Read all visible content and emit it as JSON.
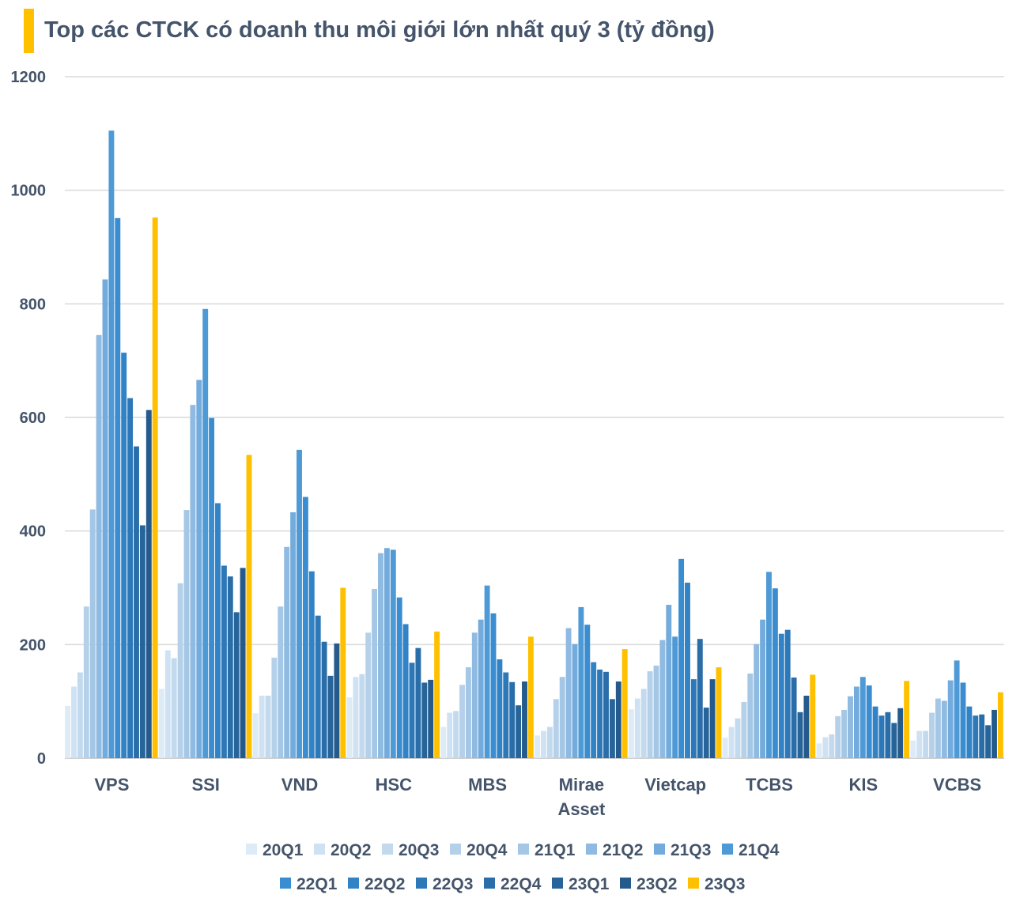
{
  "chart_data": {
    "type": "bar",
    "title": "Top các CTCK có doanh thu môi giới lớn nhất quý 3 (tỷ đồng)",
    "xlabel": "",
    "ylabel": "",
    "ylim": [
      0,
      1200
    ],
    "yticks": [
      0,
      200,
      400,
      600,
      800,
      1000,
      1200
    ],
    "grid": true,
    "legend_position": "bottom",
    "categories": [
      "VPS",
      "SSI",
      "VND",
      "HSC",
      "MBS",
      "Mirae Asset",
      "Vietcap",
      "TCBS",
      "KIS",
      "VCBS"
    ],
    "series": [
      {
        "name": "20Q1",
        "color": "#DDEBF7",
        "values": [
          92,
          122,
          79,
          107,
          55,
          40,
          86,
          36,
          26,
          31
        ]
      },
      {
        "name": "20Q2",
        "color": "#CFE2F3",
        "values": [
          126,
          190,
          110,
          143,
          80,
          48,
          105,
          55,
          37,
          48
        ]
      },
      {
        "name": "20Q3",
        "color": "#C3DAEE",
        "values": [
          151,
          176,
          110,
          148,
          83,
          55,
          122,
          70,
          42,
          48
        ]
      },
      {
        "name": "20Q4",
        "color": "#B5D1EA",
        "values": [
          267,
          308,
          177,
          221,
          129,
          104,
          153,
          99,
          74,
          80
        ]
      },
      {
        "name": "21Q1",
        "color": "#A4C7E6",
        "values": [
          438,
          437,
          267,
          298,
          160,
          143,
          163,
          149,
          85,
          105
        ]
      },
      {
        "name": "21Q2",
        "color": "#8FBAE1",
        "values": [
          745,
          622,
          372,
          361,
          221,
          229,
          208,
          201,
          109,
          101
        ]
      },
      {
        "name": "21Q3",
        "color": "#74ABDD",
        "values": [
          843,
          666,
          433,
          370,
          244,
          201,
          270,
          244,
          126,
          137
        ]
      },
      {
        "name": "21Q4",
        "color": "#4D9AD6",
        "values": [
          1105,
          791,
          543,
          367,
          304,
          266,
          214,
          328,
          143,
          172
        ]
      },
      {
        "name": "22Q1",
        "color": "#3A8DD0",
        "values": [
          951,
          599,
          460,
          283,
          255,
          235,
          351,
          299,
          128,
          133
        ]
      },
      {
        "name": "22Q2",
        "color": "#3282C6",
        "values": [
          714,
          449,
          329,
          236,
          174,
          169,
          309,
          219,
          91,
          91
        ]
      },
      {
        "name": "22Q3",
        "color": "#2D78B8",
        "values": [
          634,
          339,
          251,
          168,
          151,
          156,
          139,
          226,
          75,
          75
        ]
      },
      {
        "name": "22Q4",
        "color": "#2A6EA9",
        "values": [
          549,
          320,
          205,
          194,
          134,
          152,
          210,
          142,
          81,
          77
        ]
      },
      {
        "name": "23Q1",
        "color": "#27649A",
        "values": [
          410,
          257,
          145,
          133,
          93,
          104,
          89,
          81,
          62,
          58
        ]
      },
      {
        "name": "23Q2",
        "color": "#245A8C",
        "values": [
          613,
          335,
          202,
          138,
          135,
          135,
          139,
          110,
          88,
          85
        ]
      },
      {
        "name": "23Q3",
        "color": "#FFC000",
        "values": [
          952,
          534,
          300,
          223,
          214,
          192,
          160,
          147,
          136,
          116
        ]
      }
    ]
  }
}
